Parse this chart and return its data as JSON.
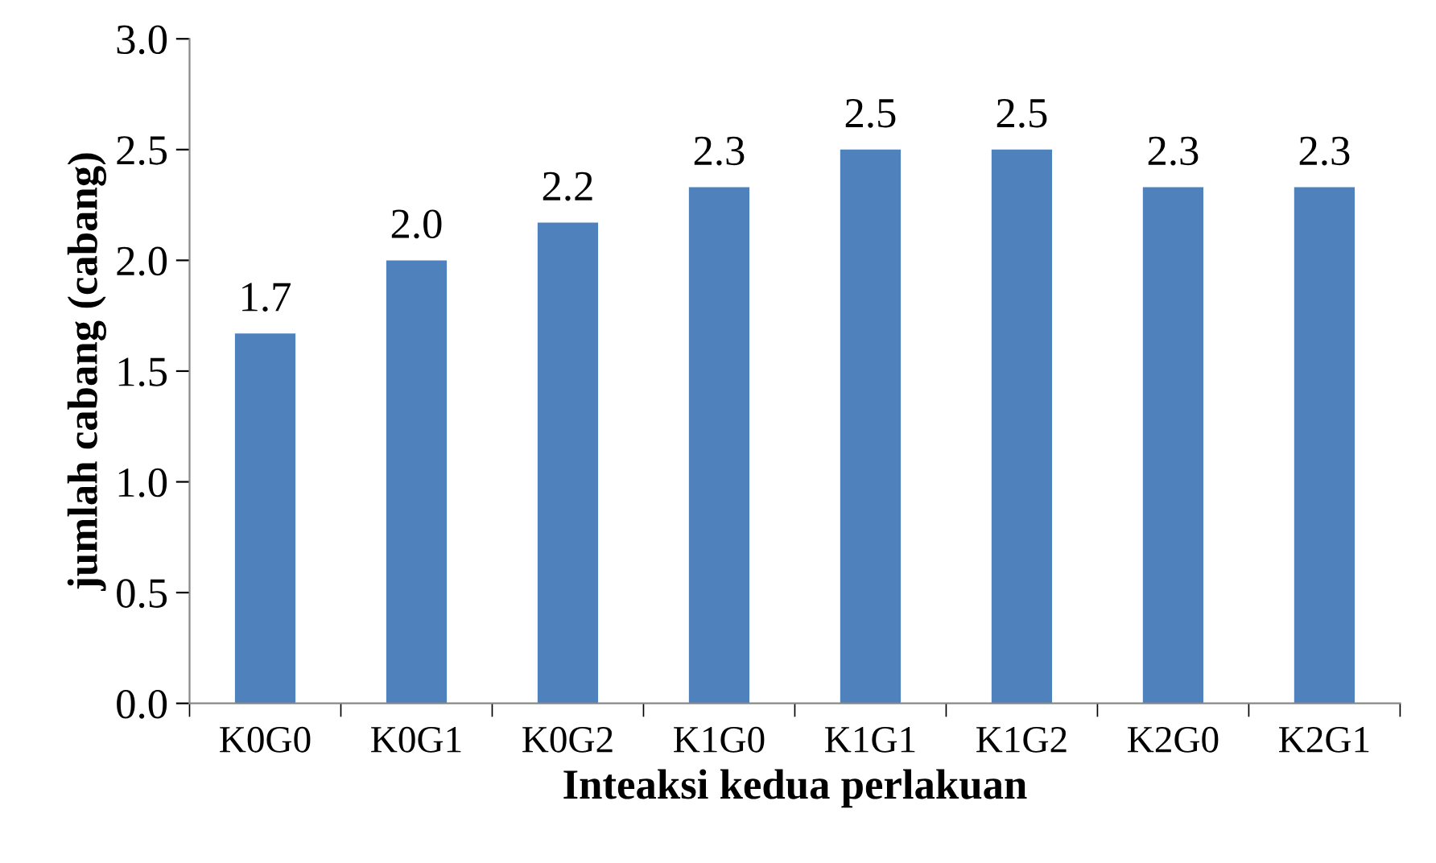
{
  "chart_data": {
    "type": "bar",
    "xlabel": "Inteaksi kedua perlakuan",
    "ylabel": "jumlah cabang (cabang)",
    "categories": [
      "K0G0",
      "K0G1",
      "K0G2",
      "K1G0",
      "K1G1",
      "K1G2",
      "K2G0",
      "K2G1"
    ],
    "values": [
      1.67,
      2.0,
      2.17,
      2.33,
      2.5,
      2.5,
      2.33,
      2.33
    ],
    "value_labels": [
      "1.7",
      "2.0",
      "2.2",
      "2.3",
      "2.5",
      "2.5",
      "2.3",
      "2.3"
    ],
    "color": "#4f81bd",
    "ylim": [
      0,
      3
    ],
    "yticks": [
      {
        "value": 0,
        "label": "0.0"
      },
      {
        "value": 0.5,
        "label": "0.5"
      },
      {
        "value": 1,
        "label": "1.0"
      },
      {
        "value": 1.5,
        "label": "1.5"
      },
      {
        "value": 2,
        "label": "2.0"
      },
      {
        "value": 2.5,
        "label": "2.5"
      },
      {
        "value": 3,
        "label": "3.0"
      }
    ],
    "grid": false
  }
}
